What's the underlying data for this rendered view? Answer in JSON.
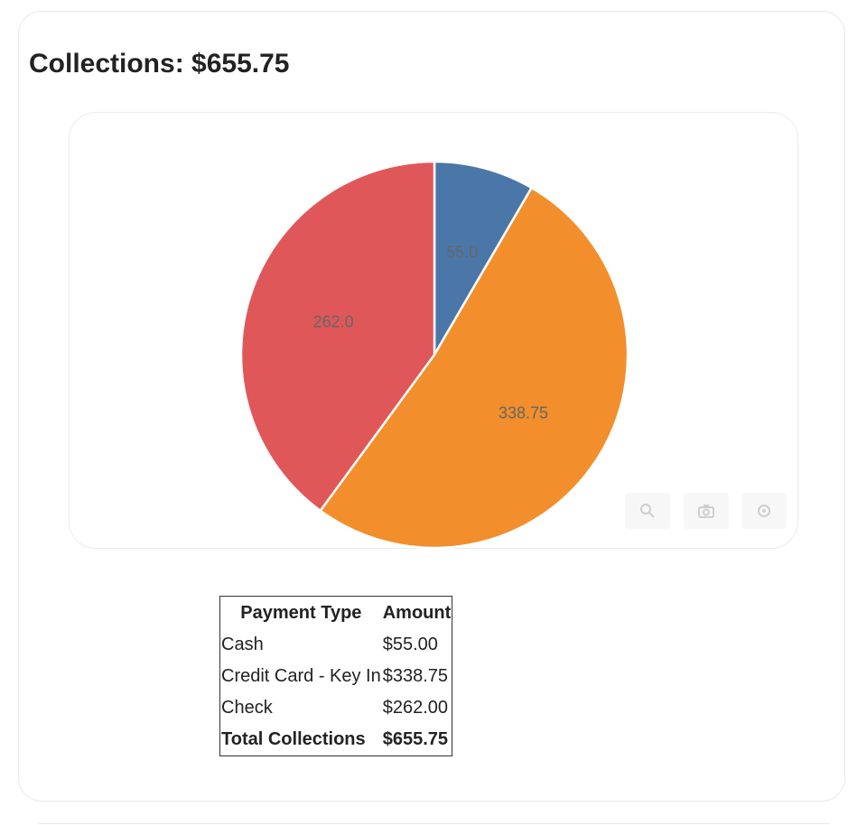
{
  "header": {
    "title": "Collections: $655.75"
  },
  "chart_data": {
    "type": "pie",
    "slices": [
      {
        "label": "Cash",
        "value": 55.0,
        "display": "55.0",
        "color": "#4a77a8"
      },
      {
        "label": "Credit Card - Key In",
        "value": 338.75,
        "display": "338.75",
        "color": "#f28e2c"
      },
      {
        "label": "Check",
        "value": 262.0,
        "display": "262.0",
        "color": "#e05759"
      }
    ]
  },
  "toolbar": {
    "icons": [
      "zoom-icon",
      "camera-icon",
      "settings-icon"
    ]
  },
  "table": {
    "headers": [
      "Payment Type",
      "Amount"
    ],
    "rows": [
      {
        "type": "Cash",
        "amount": "$55.00"
      },
      {
        "type": "Credit Card - Key In",
        "amount": "$338.75"
      },
      {
        "type": "Check",
        "amount": "$262.00"
      }
    ],
    "total": {
      "label": "Total Collections",
      "amount": "$655.75"
    }
  }
}
